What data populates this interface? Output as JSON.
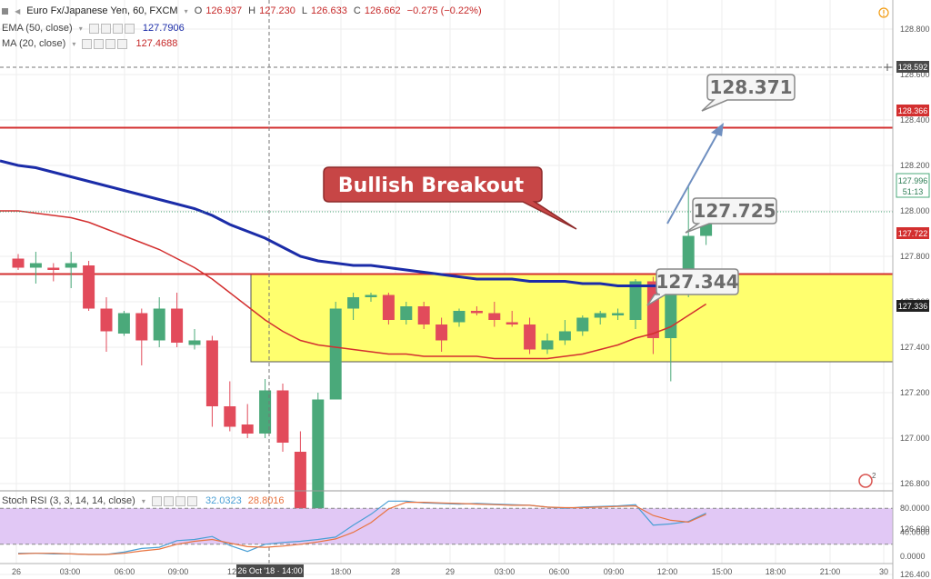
{
  "header": {
    "symbol_title": "Euro Fx/Japanese Yen, 60, FXCM",
    "ohlc": [
      {
        "k": "O",
        "v": "126.937"
      },
      {
        "k": "H",
        "v": "127.230"
      },
      {
        "k": "L",
        "v": "126.633"
      },
      {
        "k": "C",
        "v": "126.662"
      }
    ],
    "change": "−0.275 (−0.22%)",
    "ema_label": "EMA (50, close)",
    "ema_value": "127.7906",
    "ma_label": "MA (20, close)",
    "ma_value": "127.4688"
  },
  "stoch": {
    "label": "Stoch RSI (3, 3, 14, 14, close)",
    "k_value": "32.0323",
    "d_value": "28.8016",
    "axis_labels": [
      "80.0000",
      "40.0000",
      "0.0000"
    ]
  },
  "annotations": {
    "bullish_breakout": "Bullish Breakout",
    "call_128371": "128.371",
    "call_127725": "127.725",
    "call_127344": "127.344"
  },
  "price_axis": {
    "ticks": [
      "128.800",
      "128.600",
      "128.400",
      "128.200",
      "128.000",
      "127.800",
      "127.600",
      "127.400",
      "127.200",
      "127.000",
      "126.800",
      "126.600",
      "126.400"
    ],
    "crosshair_label": "128.592",
    "badge_resistance_top": "128.366",
    "badge_current": "127.996",
    "countdown": "51:13",
    "badge_resistance_mid": "127.722",
    "badge_support": "127.336"
  },
  "time_axis": {
    "ticks": [
      "26",
      "03:00",
      "06:00",
      "09:00",
      "12",
      "18:00",
      "28",
      "29",
      "03:00",
      "06:00",
      "09:00",
      "12:00",
      "15:00",
      "18:00",
      "21:00",
      "30"
    ],
    "crosshair_label": "26 Oct '18 · 14:00"
  },
  "colors": {
    "up": "#4aa97a",
    "down": "#e24b5b",
    "ema": "#1b2ca8",
    "ma": "#d32f2f",
    "resistance_line": "#d32f2f",
    "range_box": "#ffff66",
    "stoch_band": "#e1c8f5",
    "stoch_k": "#4a9fd5",
    "stoch_d": "#e9733f",
    "callout_bg": "#c74646",
    "arrow": "#6f8fc0"
  },
  "chart_data": {
    "type": "candlestick",
    "title": "Euro Fx/Japanese Yen, 60, FXCM",
    "y_range": [
      126.33,
      128.9
    ],
    "candles": [
      {
        "o": 127.79,
        "h": 127.81,
        "l": 127.74,
        "c": 127.75
      },
      {
        "o": 127.75,
        "h": 127.82,
        "l": 127.68,
        "c": 127.77
      },
      {
        "o": 127.75,
        "h": 127.77,
        "l": 127.69,
        "c": 127.74
      },
      {
        "o": 127.75,
        "h": 127.82,
        "l": 127.66,
        "c": 127.77
      },
      {
        "o": 127.76,
        "h": 127.78,
        "l": 127.56,
        "c": 127.57
      },
      {
        "o": 127.57,
        "h": 127.62,
        "l": 127.38,
        "c": 127.47
      },
      {
        "o": 127.46,
        "h": 127.56,
        "l": 127.45,
        "c": 127.55
      },
      {
        "o": 127.55,
        "h": 127.57,
        "l": 127.32,
        "c": 127.43
      },
      {
        "o": 127.43,
        "h": 127.62,
        "l": 127.4,
        "c": 127.57
      },
      {
        "o": 127.57,
        "h": 127.64,
        "l": 127.4,
        "c": 127.42
      },
      {
        "o": 127.41,
        "h": 127.48,
        "l": 127.39,
        "c": 127.43
      },
      {
        "o": 127.43,
        "h": 127.45,
        "l": 127.05,
        "c": 127.14
      },
      {
        "o": 127.14,
        "h": 127.25,
        "l": 127.03,
        "c": 127.05
      },
      {
        "o": 127.06,
        "h": 127.15,
        "l": 127.0,
        "c": 127.02
      },
      {
        "o": 127.02,
        "h": 127.26,
        "l": 127.0,
        "c": 127.21
      },
      {
        "o": 127.21,
        "h": 127.24,
        "l": 126.94,
        "c": 126.98
      },
      {
        "o": 126.94,
        "h": 127.03,
        "l": 126.63,
        "c": 126.66
      },
      {
        "o": 126.66,
        "h": 127.2,
        "l": 126.66,
        "c": 127.17
      },
      {
        "o": 127.17,
        "h": 127.6,
        "l": 127.17,
        "c": 127.57
      },
      {
        "o": 127.57,
        "h": 127.64,
        "l": 127.52,
        "c": 127.62
      },
      {
        "o": 127.62,
        "h": 127.64,
        "l": 127.6,
        "c": 127.63
      },
      {
        "o": 127.63,
        "h": 127.64,
        "l": 127.5,
        "c": 127.52
      },
      {
        "o": 127.52,
        "h": 127.6,
        "l": 127.5,
        "c": 127.58
      },
      {
        "o": 127.58,
        "h": 127.6,
        "l": 127.48,
        "c": 127.5
      },
      {
        "o": 127.5,
        "h": 127.53,
        "l": 127.38,
        "c": 127.43
      },
      {
        "o": 127.51,
        "h": 127.57,
        "l": 127.49,
        "c": 127.56
      },
      {
        "o": 127.56,
        "h": 127.58,
        "l": 127.54,
        "c": 127.55
      },
      {
        "o": 127.55,
        "h": 127.6,
        "l": 127.49,
        "c": 127.52
      },
      {
        "o": 127.51,
        "h": 127.56,
        "l": 127.49,
        "c": 127.5
      },
      {
        "o": 127.5,
        "h": 127.53,
        "l": 127.37,
        "c": 127.39
      },
      {
        "o": 127.39,
        "h": 127.46,
        "l": 127.37,
        "c": 127.43
      },
      {
        "o": 127.43,
        "h": 127.52,
        "l": 127.41,
        "c": 127.47
      },
      {
        "o": 127.47,
        "h": 127.54,
        "l": 127.45,
        "c": 127.53
      },
      {
        "o": 127.53,
        "h": 127.56,
        "l": 127.5,
        "c": 127.55
      },
      {
        "o": 127.54,
        "h": 127.57,
        "l": 127.52,
        "c": 127.55
      },
      {
        "o": 127.52,
        "h": 127.7,
        "l": 127.48,
        "c": 127.69
      },
      {
        "o": 127.69,
        "h": 127.71,
        "l": 127.37,
        "c": 127.44
      },
      {
        "o": 127.44,
        "h": 127.66,
        "l": 127.25,
        "c": 127.64
      },
      {
        "o": 127.64,
        "h": 128.11,
        "l": 127.62,
        "c": 127.89
      },
      {
        "o": 127.89,
        "h": 128.0,
        "l": 127.85,
        "c": 127.99
      }
    ],
    "ema_50": [
      128.2,
      128.19,
      128.17,
      128.15,
      128.13,
      128.11,
      128.09,
      128.07,
      128.05,
      128.03,
      128.01,
      127.98,
      127.94,
      127.91,
      127.88,
      127.84,
      127.8,
      127.78,
      127.77,
      127.76,
      127.76,
      127.75,
      127.74,
      127.73,
      127.72,
      127.71,
      127.7,
      127.7,
      127.7,
      127.69,
      127.69,
      127.69,
      127.68,
      127.68,
      127.67,
      127.67,
      127.67,
      127.67,
      127.67,
      127.68
    ],
    "ma_20": [
      128.0,
      127.99,
      127.98,
      127.97,
      127.95,
      127.92,
      127.89,
      127.86,
      127.83,
      127.79,
      127.75,
      127.7,
      127.64,
      127.58,
      127.52,
      127.47,
      127.43,
      127.41,
      127.4,
      127.39,
      127.38,
      127.37,
      127.37,
      127.36,
      127.36,
      127.36,
      127.36,
      127.35,
      127.35,
      127.35,
      127.35,
      127.36,
      127.37,
      127.39,
      127.41,
      127.44,
      127.46,
      127.49,
      127.54,
      127.59
    ],
    "stoch_k": [
      5,
      5,
      4,
      4,
      3,
      3,
      7,
      13,
      15,
      26,
      28,
      33,
      18,
      8,
      20,
      23,
      25,
      28,
      32,
      52,
      70,
      92,
      92,
      89,
      88,
      87,
      88,
      87,
      86,
      85,
      82,
      80,
      82,
      83,
      84,
      86,
      52,
      54,
      58,
      72
    ],
    "stoch_d": [
      4,
      5,
      5,
      4,
      3,
      3,
      5,
      9,
      12,
      20,
      25,
      28,
      22,
      16,
      15,
      17,
      20,
      24,
      29,
      40,
      56,
      79,
      90,
      90,
      89,
      88,
      87,
      86,
      85,
      85,
      82,
      81,
      81,
      82,
      83,
      84,
      68,
      60,
      57,
      70
    ],
    "levels": {
      "resistance_top": 128.366,
      "resistance_mid": 127.722,
      "range_high": 127.72,
      "range_low": 127.336
    },
    "callouts": [
      128.371,
      127.725,
      127.344
    ]
  }
}
